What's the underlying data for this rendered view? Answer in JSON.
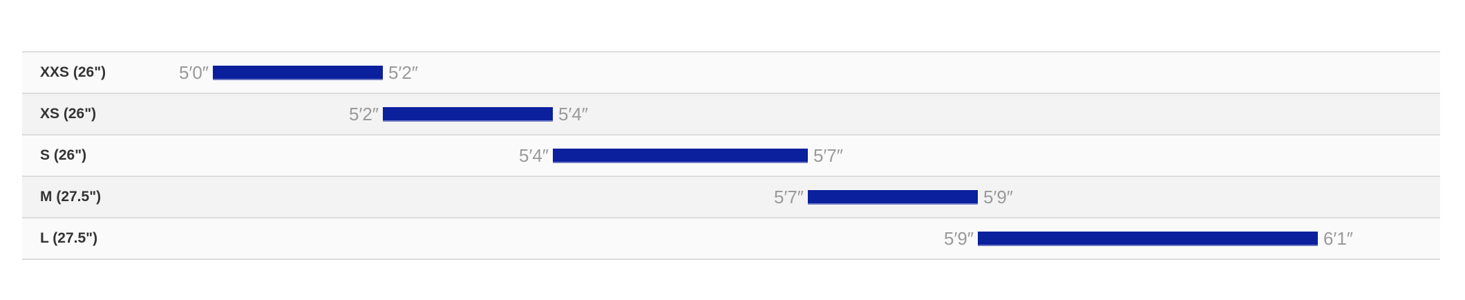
{
  "chart_data": {
    "type": "bar",
    "orientation": "horizontal-range",
    "bar_color": "#0a209d",
    "unit": "inches",
    "rows": [
      {
        "size": "XXS (26\")",
        "min": 60,
        "max": 62,
        "min_label": "5′0″",
        "max_label": "5′2″"
      },
      {
        "size": "XS (26\")",
        "min": 62,
        "max": 64,
        "min_label": "5′2″",
        "max_label": "5′4″"
      },
      {
        "size": "S (26\")",
        "min": 64,
        "max": 67,
        "min_label": "5′4″",
        "max_label": "5′7″"
      },
      {
        "size": "M (27.5\")",
        "min": 67,
        "max": 69,
        "min_label": "5′7″",
        "max_label": "5′9″"
      },
      {
        "size": "L (27.5\")",
        "min": 69,
        "max": 73,
        "min_label": "5′9″",
        "max_label": "6′1″"
      }
    ]
  }
}
